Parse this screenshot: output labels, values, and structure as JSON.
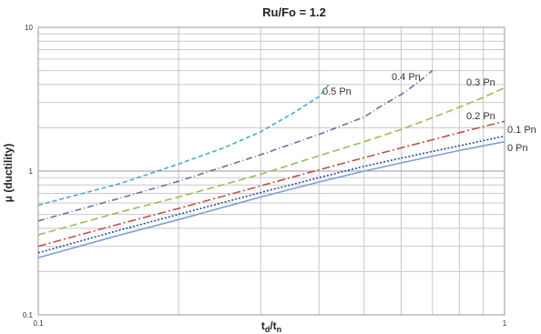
{
  "chart_data": {
    "type": "line",
    "title": "Ru/Fo = 1.2",
    "xlabel": "td/tn",
    "xlabel_main": "t",
    "xlabel_sub1": "d",
    "xlabel_sep": "/t",
    "xlabel_sub2": "n",
    "ylabel": "μ (ductility)",
    "x_scale": "log",
    "y_scale": "log",
    "xlim": [
      0.1,
      1
    ],
    "ylim": [
      0.1,
      10
    ],
    "grid": true,
    "x_ticks": [
      "0.1",
      "1"
    ],
    "y_ticks": [
      "0.1",
      "1",
      "10"
    ],
    "series": [
      {
        "name": "0.5 Pn",
        "color": "#4bacc6",
        "dash": "5,3",
        "x": [
          0.1,
          0.15,
          0.2,
          0.25,
          0.3,
          0.35,
          0.4,
          0.42
        ],
        "y": [
          0.58,
          0.82,
          1.12,
          1.45,
          1.88,
          2.5,
          3.3,
          4.0
        ]
      },
      {
        "name": "0.4 Pn",
        "color": "#8064a2",
        "dash": "7,3,1,3",
        "x": [
          0.1,
          0.15,
          0.2,
          0.3,
          0.4,
          0.5,
          0.55,
          0.6,
          0.65,
          0.7
        ],
        "y": [
          0.45,
          0.65,
          0.85,
          1.3,
          1.8,
          2.38,
          2.9,
          3.4,
          4.1,
          5.0
        ]
      },
      {
        "name": "0.3 Pn",
        "color": "#9bbb59",
        "dash": "8,4",
        "x": [
          0.1,
          0.15,
          0.2,
          0.3,
          0.4,
          0.5,
          0.6,
          0.7,
          0.8,
          0.9,
          1.0
        ],
        "y": [
          0.36,
          0.52,
          0.66,
          0.95,
          1.28,
          1.6,
          1.95,
          2.35,
          2.78,
          3.25,
          3.8
        ]
      },
      {
        "name": "0.2 Pn",
        "color": "#c0504d",
        "dash": "9,3,2,3",
        "x": [
          0.1,
          0.15,
          0.2,
          0.3,
          0.4,
          0.5,
          0.6,
          0.7,
          0.8,
          0.9,
          1.0
        ],
        "y": [
          0.3,
          0.43,
          0.55,
          0.79,
          1.02,
          1.24,
          1.45,
          1.65,
          1.85,
          2.04,
          2.22
        ]
      },
      {
        "name": "0.1 Pn",
        "color": "#1f4e9a",
        "dash": "2,2",
        "x": [
          0.1,
          0.15,
          0.2,
          0.3,
          0.4,
          0.5,
          0.6,
          0.7,
          0.8,
          0.9,
          1.0
        ],
        "y": [
          0.27,
          0.39,
          0.5,
          0.71,
          0.9,
          1.08,
          1.23,
          1.37,
          1.5,
          1.63,
          1.75
        ]
      },
      {
        "name": "0 Pn",
        "color": "#7f9fd0",
        "dash": "",
        "x": [
          0.1,
          0.15,
          0.2,
          0.3,
          0.4,
          0.5,
          0.6,
          0.7,
          0.8,
          0.9,
          1.0
        ],
        "y": [
          0.25,
          0.36,
          0.46,
          0.66,
          0.84,
          1.0,
          1.14,
          1.27,
          1.39,
          1.5,
          1.6
        ]
      }
    ]
  }
}
